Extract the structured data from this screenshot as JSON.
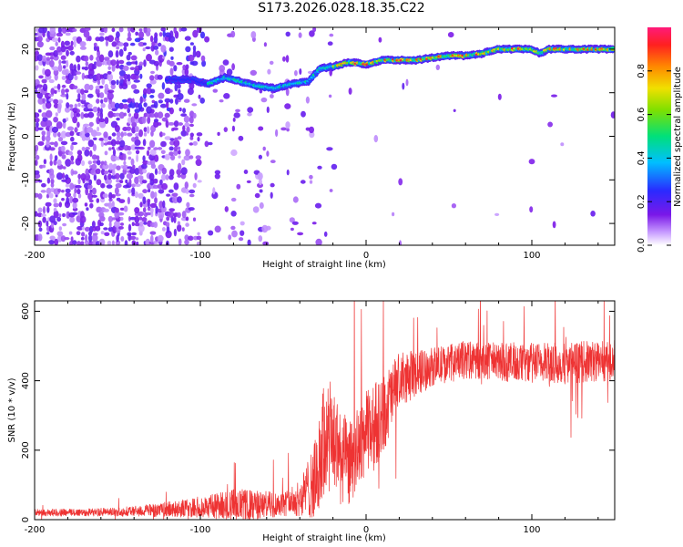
{
  "title": "S173.2026.028.18.35.C22",
  "chart_data": [
    {
      "type": "heatmap",
      "name": "spectrogram",
      "xlabel": "Height of straight line (km)",
      "ylabel": "Frequency (Hz)",
      "xlim": [
        -200,
        150
      ],
      "ylim": [
        -25,
        25
      ],
      "xticks": [
        -200,
        -100,
        0,
        100
      ],
      "yticks": [
        -20,
        -10,
        0,
        10,
        20
      ],
      "colorbar": {
        "label": "Normalized spectral amplitude",
        "range": [
          0.0,
          1.0
        ],
        "ticks": [
          0.0,
          0.2,
          0.4,
          0.6,
          0.8
        ]
      },
      "ridge": [
        {
          "x": -105,
          "y": 13
        },
        {
          "x": -95,
          "y": 12
        },
        {
          "x": -85,
          "y": 13.5
        },
        {
          "x": -75,
          "y": 12.5
        },
        {
          "x": -65,
          "y": 11.5
        },
        {
          "x": -55,
          "y": 11
        },
        {
          "x": -45,
          "y": 12
        },
        {
          "x": -35,
          "y": 12.5
        },
        {
          "x": -28,
          "y": 15.5
        },
        {
          "x": -20,
          "y": 16
        },
        {
          "x": -10,
          "y": 17
        },
        {
          "x": 0,
          "y": 16.5
        },
        {
          "x": 10,
          "y": 17.5
        },
        {
          "x": 20,
          "y": 17.5
        },
        {
          "x": 30,
          "y": 17.5
        },
        {
          "x": 40,
          "y": 18
        },
        {
          "x": 50,
          "y": 18.5
        },
        {
          "x": 60,
          "y": 18.5
        },
        {
          "x": 70,
          "y": 19
        },
        {
          "x": 80,
          "y": 20
        },
        {
          "x": 90,
          "y": 20
        },
        {
          "x": 100,
          "y": 20
        },
        {
          "x": 105,
          "y": 19
        },
        {
          "x": 110,
          "y": 20
        },
        {
          "x": 120,
          "y": 20
        },
        {
          "x": 130,
          "y": 20
        },
        {
          "x": 140,
          "y": 20
        },
        {
          "x": 150,
          "y": 20
        }
      ]
    },
    {
      "type": "line",
      "name": "snr",
      "xlabel": "Height of straight line (km)",
      "ylabel": "SNR (10 * v/v)",
      "xlim": [
        -200,
        150
      ],
      "ylim": [
        0,
        630
      ],
      "xticks": [
        -200,
        -100,
        0,
        100
      ],
      "yticks": [
        0,
        200,
        400,
        600
      ],
      "color": "#ee3333",
      "series": [
        {
          "name": "SNR",
          "envelope": [
            {
              "x": -200,
              "y": 20,
              "amp": 10
            },
            {
              "x": -150,
              "y": 22,
              "amp": 12
            },
            {
              "x": -125,
              "y": 28,
              "amp": 20
            },
            {
              "x": -100,
              "y": 35,
              "amp": 30
            },
            {
              "x": -80,
              "y": 45,
              "amp": 45
            },
            {
              "x": -70,
              "y": 40,
              "amp": 45
            },
            {
              "x": -50,
              "y": 45,
              "amp": 35
            },
            {
              "x": -40,
              "y": 60,
              "amp": 50
            },
            {
              "x": -30,
              "y": 120,
              "amp": 120
            },
            {
              "x": -25,
              "y": 230,
              "amp": 180
            },
            {
              "x": -20,
              "y": 230,
              "amp": 160
            },
            {
              "x": -15,
              "y": 180,
              "amp": 140
            },
            {
              "x": -10,
              "y": 160,
              "amp": 120
            },
            {
              "x": 0,
              "y": 250,
              "amp": 120
            },
            {
              "x": 10,
              "y": 300,
              "amp": 120
            },
            {
              "x": 20,
              "y": 400,
              "amp": 80
            },
            {
              "x": 40,
              "y": 440,
              "amp": 55
            },
            {
              "x": 60,
              "y": 460,
              "amp": 55
            },
            {
              "x": 80,
              "y": 455,
              "amp": 55
            },
            {
              "x": 100,
              "y": 450,
              "amp": 60
            },
            {
              "x": 120,
              "y": 450,
              "amp": 60
            },
            {
              "x": 150,
              "y": 460,
              "amp": 60
            }
          ]
        }
      ]
    }
  ]
}
